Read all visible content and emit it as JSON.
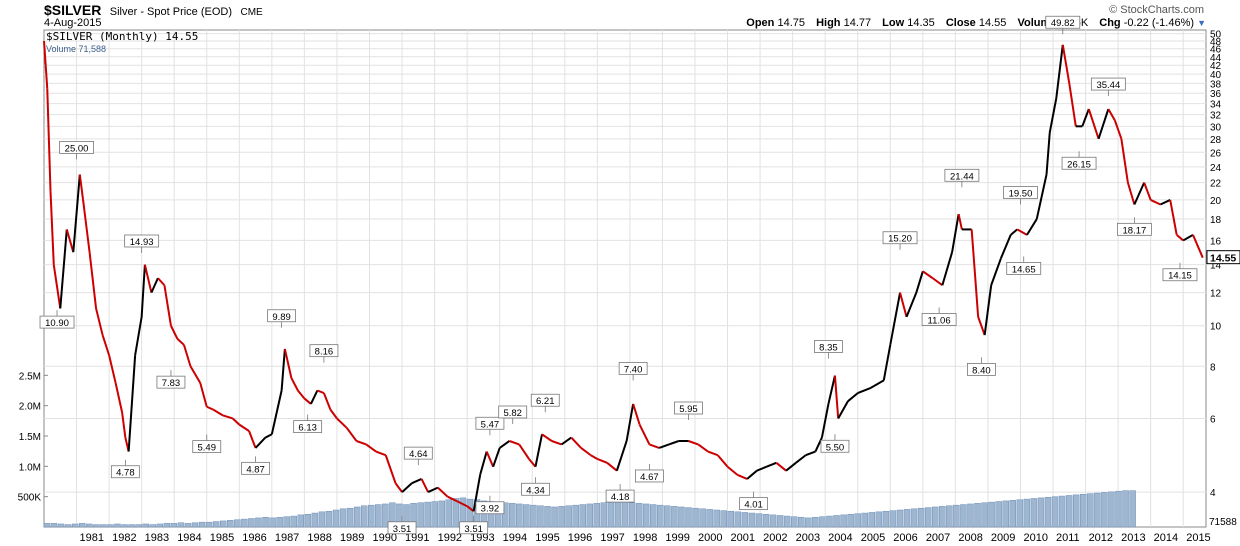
{
  "header": {
    "symbol": "$SILVER",
    "description": "Silver - Spot Price (EOD)",
    "exchange": "CME",
    "date": "4-Aug-2015",
    "brand": "© StockCharts.com",
    "open_label": "Open",
    "open": "14.75",
    "high_label": "High",
    "high": "14.77",
    "low_label": "Low",
    "low": "14.35",
    "close_label": "Close",
    "close": "14.55",
    "volume_label": "Volume",
    "volume": "71.6K",
    "chg_label": "Chg",
    "chg": "-0.22 (-1.46%)",
    "chg_arrow": "▼"
  },
  "legend": {
    "price": "$SILVER (Monthly) 14.55",
    "volume": "Volume 71,588"
  },
  "chart_data": {
    "type": "line",
    "scale": "log",
    "price_axis": {
      "ticks": [
        4,
        6,
        8,
        10,
        12,
        14,
        16,
        18,
        20,
        22,
        24,
        26,
        28,
        30,
        32,
        34,
        36,
        38,
        40,
        42,
        44,
        46,
        48,
        50
      ],
      "range": [
        3.3,
        51
      ]
    },
    "last_price_label": "14.55",
    "volume_axis": {
      "ticks": [
        "500K",
        "1.0M",
        "1.5M",
        "2.0M",
        "2.5M"
      ],
      "values": [
        500000,
        1000000,
        1500000,
        2000000,
        2500000
      ],
      "last_label": "71588"
    },
    "x_axis": {
      "years": [
        "1981",
        "1982",
        "1983",
        "1984",
        "1985",
        "1986",
        "1987",
        "1988",
        "1989",
        "1990",
        "1991",
        "1992",
        "1993",
        "1994",
        "1995",
        "1996",
        "1997",
        "1998",
        "1999",
        "2000",
        "2001",
        "2002",
        "2003",
        "2004",
        "2005",
        "2006",
        "2007",
        "2008",
        "2009",
        "2010",
        "2011",
        "2012",
        "2013",
        "2014",
        "2015"
      ],
      "start": 1980.0,
      "end": 2015.7
    },
    "series": [
      {
        "points": [
          [
            1980.0,
            48
          ],
          [
            1980.1,
            37
          ],
          [
            1980.2,
            21
          ],
          [
            1980.3,
            14
          ],
          [
            1980.5,
            11
          ],
          [
            1980.7,
            17
          ],
          [
            1980.9,
            15
          ],
          [
            1981.1,
            23
          ],
          [
            1981.2,
            20
          ],
          [
            1981.4,
            15
          ],
          [
            1981.6,
            11
          ],
          [
            1981.8,
            9.5
          ],
          [
            1982.0,
            8.5
          ],
          [
            1982.2,
            7.3
          ],
          [
            1982.4,
            6.2
          ],
          [
            1982.5,
            5.4
          ],
          [
            1982.6,
            5.0
          ],
          [
            1982.8,
            8.5
          ],
          [
            1983.0,
            10.5
          ],
          [
            1983.1,
            14.0
          ],
          [
            1983.3,
            12.0
          ],
          [
            1983.5,
            13.0
          ],
          [
            1983.7,
            12.5
          ],
          [
            1983.9,
            10.0
          ],
          [
            1984.1,
            9.3
          ],
          [
            1984.3,
            9.0
          ],
          [
            1984.5,
            8.0
          ],
          [
            1984.8,
            7.3
          ],
          [
            1985.0,
            6.4
          ],
          [
            1985.2,
            6.3
          ],
          [
            1985.5,
            6.1
          ],
          [
            1985.8,
            6.0
          ],
          [
            1986.0,
            5.8
          ],
          [
            1986.3,
            5.6
          ],
          [
            1986.5,
            5.1
          ],
          [
            1986.8,
            5.4
          ],
          [
            1987.0,
            5.5
          ],
          [
            1987.3,
            7.0
          ],
          [
            1987.4,
            8.8
          ],
          [
            1987.6,
            7.5
          ],
          [
            1987.8,
            7.0
          ],
          [
            1988.0,
            6.7
          ],
          [
            1988.2,
            6.5
          ],
          [
            1988.4,
            7.0
          ],
          [
            1988.6,
            6.9
          ],
          [
            1988.8,
            6.3
          ],
          [
            1989.0,
            6.0
          ],
          [
            1989.3,
            5.7
          ],
          [
            1989.6,
            5.3
          ],
          [
            1989.9,
            5.2
          ],
          [
            1990.2,
            5.0
          ],
          [
            1990.5,
            4.9
          ],
          [
            1990.8,
            4.2
          ],
          [
            1991.0,
            4.0
          ],
          [
            1991.3,
            4.2
          ],
          [
            1991.6,
            4.3
          ],
          [
            1991.8,
            4.0
          ],
          [
            1992.1,
            4.1
          ],
          [
            1992.4,
            3.9
          ],
          [
            1992.7,
            3.8
          ],
          [
            1993.0,
            3.7
          ],
          [
            1993.2,
            3.6
          ],
          [
            1993.4,
            4.4
          ],
          [
            1993.6,
            5.0
          ],
          [
            1993.8,
            4.6
          ],
          [
            1994.0,
            5.1
          ],
          [
            1994.3,
            5.3
          ],
          [
            1994.6,
            5.2
          ],
          [
            1994.9,
            4.8
          ],
          [
            1995.1,
            4.6
          ],
          [
            1995.3,
            5.5
          ],
          [
            1995.6,
            5.3
          ],
          [
            1995.9,
            5.2
          ],
          [
            1996.2,
            5.4
          ],
          [
            1996.5,
            5.1
          ],
          [
            1996.8,
            4.9
          ],
          [
            1997.0,
            4.8
          ],
          [
            1997.3,
            4.7
          ],
          [
            1997.6,
            4.5
          ],
          [
            1997.9,
            5.3
          ],
          [
            1998.1,
            6.5
          ],
          [
            1998.3,
            5.8
          ],
          [
            1998.6,
            5.2
          ],
          [
            1998.9,
            5.1
          ],
          [
            1999.2,
            5.2
          ],
          [
            1999.5,
            5.3
          ],
          [
            1999.8,
            5.3
          ],
          [
            2000.1,
            5.2
          ],
          [
            2000.4,
            5.0
          ],
          [
            2000.7,
            4.9
          ],
          [
            2001.0,
            4.6
          ],
          [
            2001.3,
            4.4
          ],
          [
            2001.6,
            4.3
          ],
          [
            2001.9,
            4.5
          ],
          [
            2002.2,
            4.6
          ],
          [
            2002.5,
            4.7
          ],
          [
            2002.8,
            4.5
          ],
          [
            2003.1,
            4.7
          ],
          [
            2003.4,
            4.9
          ],
          [
            2003.7,
            5.0
          ],
          [
            2003.9,
            5.4
          ],
          [
            2004.1,
            6.5
          ],
          [
            2004.3,
            7.6
          ],
          [
            2004.4,
            6.0
          ],
          [
            2004.7,
            6.6
          ],
          [
            2005.0,
            6.9
          ],
          [
            2005.4,
            7.1
          ],
          [
            2005.8,
            7.4
          ],
          [
            2006.0,
            9.0
          ],
          [
            2006.3,
            12.0
          ],
          [
            2006.5,
            10.5
          ],
          [
            2006.8,
            12.0
          ],
          [
            2007.0,
            13.5
          ],
          [
            2007.3,
            13.0
          ],
          [
            2007.6,
            12.5
          ],
          [
            2007.9,
            15.0
          ],
          [
            2008.1,
            18.5
          ],
          [
            2008.2,
            17.0
          ],
          [
            2008.5,
            17.0
          ],
          [
            2008.7,
            10.5
          ],
          [
            2008.9,
            9.5
          ],
          [
            2009.1,
            12.5
          ],
          [
            2009.4,
            14.5
          ],
          [
            2009.7,
            16.5
          ],
          [
            2009.9,
            17.0
          ],
          [
            2010.2,
            16.5
          ],
          [
            2010.5,
            18.0
          ],
          [
            2010.8,
            23.0
          ],
          [
            2010.9,
            29.0
          ],
          [
            2011.1,
            35.0
          ],
          [
            2011.3,
            47.0
          ],
          [
            2011.5,
            38.0
          ],
          [
            2011.7,
            30.0
          ],
          [
            2011.9,
            30.0
          ],
          [
            2012.1,
            33.0
          ],
          [
            2012.4,
            28.0
          ],
          [
            2012.7,
            33.0
          ],
          [
            2012.9,
            31.0
          ],
          [
            2013.1,
            28.0
          ],
          [
            2013.3,
            22.0
          ],
          [
            2013.5,
            19.5
          ],
          [
            2013.8,
            22.0
          ],
          [
            2014.0,
            20.0
          ],
          [
            2014.3,
            19.5
          ],
          [
            2014.6,
            20.0
          ],
          [
            2014.8,
            16.5
          ],
          [
            2015.0,
            16.0
          ],
          [
            2015.3,
            16.5
          ],
          [
            2015.6,
            14.55
          ]
        ]
      }
    ],
    "annotations": [
      {
        "x": 1980.4,
        "y": 10.9,
        "text": "10.90",
        "pos": "below"
      },
      {
        "x": 1981.0,
        "y": 25.0,
        "text": "25.00",
        "pos": "above"
      },
      {
        "x": 1982.5,
        "y": 4.78,
        "text": "4.78",
        "pos": "below"
      },
      {
        "x": 1983.0,
        "y": 14.93,
        "text": "14.93",
        "pos": "above"
      },
      {
        "x": 1983.9,
        "y": 7.83,
        "text": "7.83",
        "pos": "below"
      },
      {
        "x": 1985.0,
        "y": 5.49,
        "text": "5.49",
        "pos": "below"
      },
      {
        "x": 1986.5,
        "y": 4.87,
        "text": "4.87",
        "pos": "below"
      },
      {
        "x": 1987.3,
        "y": 9.89,
        "text": "9.89",
        "pos": "above"
      },
      {
        "x": 1988.1,
        "y": 6.13,
        "text": "6.13",
        "pos": "below"
      },
      {
        "x": 1988.6,
        "y": 8.16,
        "text": "8.16",
        "pos": "above"
      },
      {
        "x": 1991.0,
        "y": 3.51,
        "text": "3.51",
        "pos": "below"
      },
      {
        "x": 1991.5,
        "y": 4.64,
        "text": "4.64",
        "pos": "above"
      },
      {
        "x": 1993.2,
        "y": 3.51,
        "text": "3.51",
        "pos": "below"
      },
      {
        "x": 1993.7,
        "y": 3.92,
        "text": "3.92",
        "pos": "below"
      },
      {
        "x": 1993.7,
        "y": 5.47,
        "text": "5.47",
        "pos": "above"
      },
      {
        "x": 1994.4,
        "y": 5.82,
        "text": "5.82",
        "pos": "above"
      },
      {
        "x": 1995.1,
        "y": 4.34,
        "text": "4.34",
        "pos": "below"
      },
      {
        "x": 1995.4,
        "y": 6.21,
        "text": "6.21",
        "pos": "above"
      },
      {
        "x": 1997.7,
        "y": 4.18,
        "text": "4.18",
        "pos": "below"
      },
      {
        "x": 1998.1,
        "y": 7.4,
        "text": "7.40",
        "pos": "above"
      },
      {
        "x": 1998.6,
        "y": 4.67,
        "text": "4.67",
        "pos": "below"
      },
      {
        "x": 1999.8,
        "y": 5.95,
        "text": "5.95",
        "pos": "above"
      },
      {
        "x": 2001.8,
        "y": 4.01,
        "text": "4.01",
        "pos": "below"
      },
      {
        "x": 2004.1,
        "y": 8.35,
        "text": "8.35",
        "pos": "above"
      },
      {
        "x": 2004.3,
        "y": 5.5,
        "text": "5.50",
        "pos": "below"
      },
      {
        "x": 2006.3,
        "y": 15.2,
        "text": "15.20",
        "pos": "above"
      },
      {
        "x": 2007.5,
        "y": 11.06,
        "text": "11.06",
        "pos": "below"
      },
      {
        "x": 2008.2,
        "y": 21.44,
        "text": "21.44",
        "pos": "above"
      },
      {
        "x": 2008.8,
        "y": 8.4,
        "text": "8.40",
        "pos": "below"
      },
      {
        "x": 2010.0,
        "y": 19.5,
        "text": "19.50",
        "pos": "above"
      },
      {
        "x": 2010.1,
        "y": 14.65,
        "text": "14.65",
        "pos": "below"
      },
      {
        "x": 2011.3,
        "y": 49.82,
        "text": "49.82",
        "pos": "above"
      },
      {
        "x": 2011.8,
        "y": 26.15,
        "text": "26.15",
        "pos": "below"
      },
      {
        "x": 2012.7,
        "y": 35.44,
        "text": "35.44",
        "pos": "above"
      },
      {
        "x": 2013.5,
        "y": 18.17,
        "text": "18.17",
        "pos": "below"
      },
      {
        "x": 2014.9,
        "y": 14.15,
        "text": "14.15",
        "pos": "below"
      }
    ],
    "volume_series": {
      "x_start": 1980.0,
      "x_step": 0.0833,
      "values": [
        60000,
        60000,
        50000,
        40000,
        50000,
        60000,
        50000,
        40000,
        40000,
        40000,
        50000,
        40000,
        40000,
        40000,
        50000,
        40000,
        50000,
        60000,
        60000,
        70000,
        60000,
        70000,
        80000,
        80000,
        90000,
        100000,
        110000,
        120000,
        130000,
        140000,
        150000,
        160000,
        150000,
        160000,
        170000,
        180000,
        200000,
        210000,
        230000,
        250000,
        260000,
        280000,
        300000,
        310000,
        330000,
        350000,
        360000,
        370000,
        380000,
        400000,
        380000,
        370000,
        390000,
        400000,
        410000,
        420000,
        430000,
        450000,
        470000,
        480000,
        460000,
        450000,
        430000,
        420000,
        410000,
        400000,
        390000,
        380000,
        370000,
        360000,
        350000,
        340000,
        330000,
        340000,
        350000,
        360000,
        370000,
        380000,
        390000,
        400000,
        410000,
        420000,
        410000,
        400000,
        390000,
        380000,
        370000,
        360000,
        350000,
        340000,
        330000,
        320000,
        310000,
        300000,
        290000,
        280000,
        270000,
        260000,
        250000,
        240000,
        230000,
        220000,
        210000,
        200000,
        190000,
        180000,
        170000,
        160000,
        150000,
        160000,
        170000,
        180000,
        190000,
        200000,
        210000,
        220000,
        230000,
        240000,
        250000,
        260000,
        270000,
        280000,
        290000,
        300000,
        310000,
        320000,
        330000,
        340000,
        350000,
        360000,
        370000,
        380000,
        390000,
        400000,
        410000,
        420000,
        430000,
        440000,
        450000,
        460000,
        470000,
        480000,
        490000,
        500000,
        510000,
        520000,
        530000,
        540000,
        550000,
        560000,
        570000,
        580000,
        590000,
        600000,
        600000
      ]
    }
  }
}
